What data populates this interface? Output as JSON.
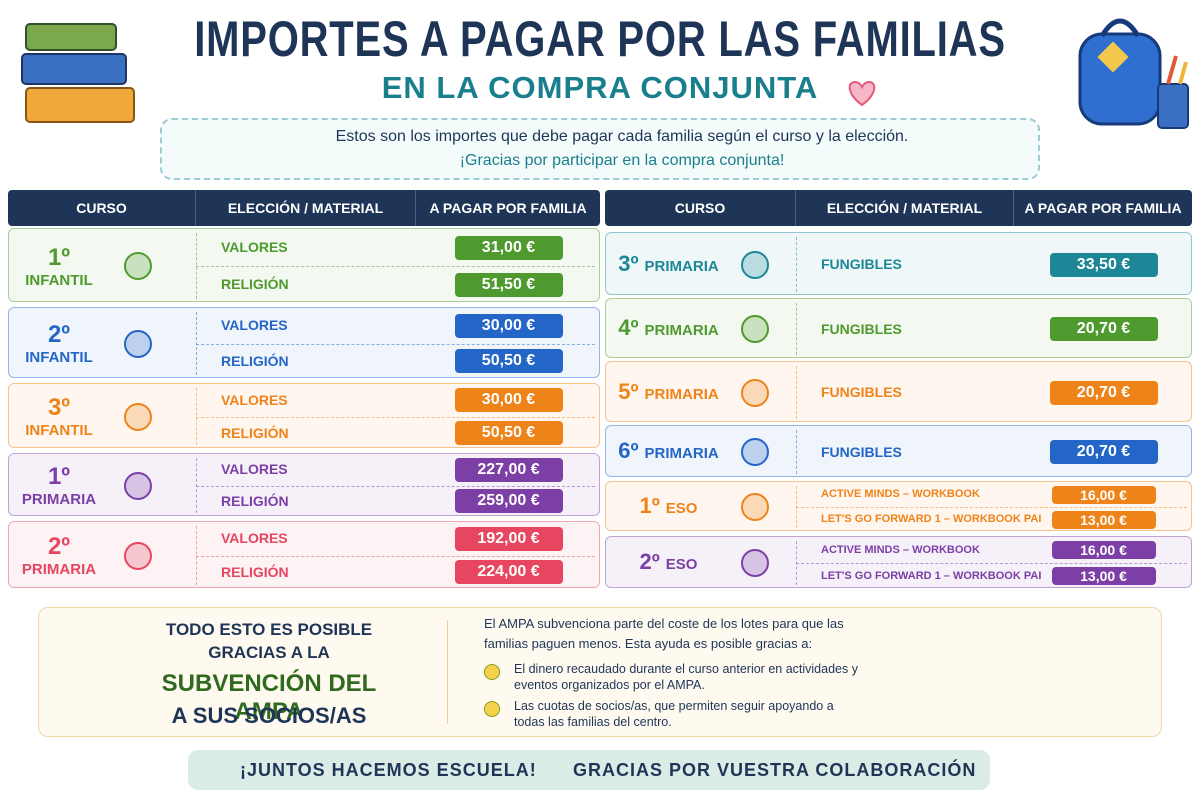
{
  "header": {
    "title": "IMPORTES A PAGAR POR LAS FAMILIAS",
    "subtitle": "EN LA COMPRA CONJUNTA"
  },
  "intro": [
    "Estos son los importes que debe pagar cada familia según el curso y la elección.",
    "¡Gracias por participar en la compra conjunta!"
  ],
  "tables": [
    {
      "headers": [
        "CURSO",
        "ELECCIÓN / MATERIAL",
        "A PAGAR POR FAMILIA"
      ],
      "groups": [
        {
          "course": "1º",
          "level": "INFANTIL",
          "color": "#4f9a2e",
          "rows": [
            {
              "choice": "VALORES",
              "amount": "31,00 €"
            },
            {
              "choice": "RELIGIÓN",
              "amount": "51,50 €"
            }
          ]
        },
        {
          "course": "2º",
          "level": "INFANTIL",
          "color": "#2466c8",
          "rows": [
            {
              "choice": "VALORES",
              "amount": "30,00 €"
            },
            {
              "choice": "RELIGIÓN",
              "amount": "50,50 €"
            }
          ]
        },
        {
          "course": "3º",
          "level": "INFANTIL",
          "color": "#ee8419",
          "rows": [
            {
              "choice": "VALORES",
              "amount": "30,00 €"
            },
            {
              "choice": "RELIGIÓN",
              "amount": "50,50 €"
            }
          ]
        },
        {
          "course": "1º",
          "level": "PRIMARIA",
          "color": "#7b3fa6",
          "rows": [
            {
              "choice": "VALORES",
              "amount": "227,00 €"
            },
            {
              "choice": "RELIGIÓN",
              "amount": "259,00 €"
            }
          ]
        },
        {
          "course": "2º",
          "level": "PRIMARIA",
          "color": "#e6465f",
          "rows": [
            {
              "choice": "VALORES",
              "amount": "192,00 €"
            },
            {
              "choice": "RELIGIÓN",
              "amount": "224,00 €"
            }
          ]
        }
      ]
    },
    {
      "headers": [
        "CURSO",
        "ELECCIÓN / MATERIAL",
        "A PAGAR POR FAMILIA"
      ],
      "groups": [
        {
          "course": "3º",
          "level": "PRIMARIA",
          "color": "#1d8797",
          "rows": [
            {
              "choice": "FUNGIBLES",
              "amount": "33,50 €"
            }
          ]
        },
        {
          "course": "4º",
          "level": "PRIMARIA",
          "color": "#4f9a2e",
          "rows": [
            {
              "choice": "FUNGIBLES",
              "amount": "20,70 €"
            }
          ]
        },
        {
          "course": "5º",
          "level": "PRIMARIA",
          "color": "#ee8419",
          "rows": [
            {
              "choice": "FUNGIBLES",
              "amount": "20,70 €"
            }
          ]
        },
        {
          "course": "6º",
          "level": "PRIMARIA",
          "color": "#2466c8",
          "rows": [
            {
              "choice": "FUNGIBLES",
              "amount": "20,70 €"
            }
          ]
        },
        {
          "course": "1º",
          "level": "ESO",
          "color": "#ee8419",
          "rows": [
            {
              "choice": "ACTIVE MINDS – WORKBOOK",
              "amount": "16,00 €"
            },
            {
              "choice": "LET'S GO FORWARD 1 – WORKBOOK PAI",
              "amount": "13,00 €"
            }
          ]
        },
        {
          "course": "2º",
          "level": "ESO",
          "color": "#7b3fa6",
          "rows": [
            {
              "choice": "ACTIVE MINDS – WORKBOOK",
              "amount": "16,00 €"
            },
            {
              "choice": "LET'S GO FORWARD 1 – WORKBOOK PAI",
              "amount": "13,00 €"
            }
          ]
        }
      ]
    }
  ],
  "subsidy": {
    "lead": [
      "TODO ESTO ES POSIBLE",
      "GRACIAS A LA"
    ],
    "highlight": "SUBVENCIÓN DEL AMPA",
    "tail": "A SUS SOCIOS/AS",
    "text": "El AMPA subvenciona parte del coste de los lotes para que las familias paguen menos. Esta ayuda es posible gracias a:",
    "reasons": [
      "El dinero recaudado durante el curso anterior en actividades y eventos organizados por el AMPA.",
      "Las cuotas de socios/as, que permiten seguir apoyando a todas las familias del centro."
    ]
  },
  "footer": {
    "motto": "¡JUNTOS HACEMOS ESCUELA!",
    "thanks": "GRACIAS POR VUESTRA COLABORACIÓN"
  }
}
